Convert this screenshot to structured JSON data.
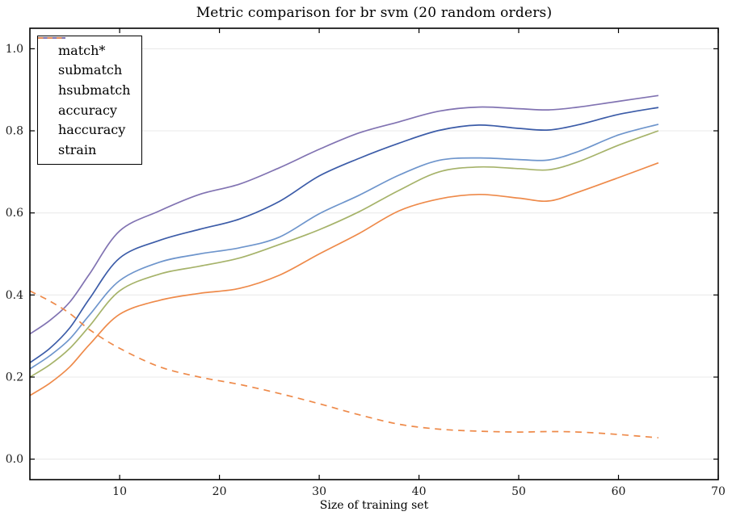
{
  "chart_data": {
    "type": "line",
    "title": "Metric comparison for br svm (20 random orders)",
    "xlabel": "Size of training set",
    "ylabel": "",
    "xlim": [
      1,
      70
    ],
    "ylim": [
      -0.05,
      1.05
    ],
    "x_ticks": [
      10,
      20,
      30,
      40,
      50,
      60,
      70
    ],
    "x_tick_labels": [
      "10",
      "20",
      "30",
      "40",
      "50",
      "60",
      "70"
    ],
    "y_ticks": [
      0.0,
      0.2,
      0.4,
      0.6,
      0.8,
      1.0
    ],
    "y_tick_labels": [
      "0.0",
      "0.2",
      "0.4",
      "0.6",
      "0.8",
      "1.0"
    ],
    "grid": "horizontal",
    "grid_color": "#e8e8e8",
    "legend_position": "upper-left",
    "x": [
      1,
      3,
      5,
      7,
      10,
      14,
      18,
      22,
      26,
      30,
      34,
      38,
      42,
      46,
      50,
      53,
      56,
      60,
      64
    ],
    "series": [
      {
        "name": "match*",
        "color": "#ee8a4a",
        "style": "solid",
        "values": [
          0.155,
          0.185,
          0.225,
          0.28,
          0.353,
          0.387,
          0.404,
          0.416,
          0.448,
          0.5,
          0.55,
          0.605,
          0.634,
          0.645,
          0.636,
          0.629,
          0.651,
          0.686,
          0.722
        ]
      },
      {
        "name": "submatch",
        "color": "#a6b36a",
        "style": "solid",
        "values": [
          0.2,
          0.23,
          0.27,
          0.325,
          0.41,
          0.451,
          0.47,
          0.49,
          0.523,
          0.559,
          0.603,
          0.655,
          0.7,
          0.712,
          0.708,
          0.705,
          0.725,
          0.765,
          0.8
        ]
      },
      {
        "name": "hsubmatch",
        "color": "#6e95cc",
        "style": "solid",
        "values": [
          0.22,
          0.252,
          0.293,
          0.352,
          0.435,
          0.48,
          0.5,
          0.515,
          0.541,
          0.598,
          0.643,
          0.692,
          0.728,
          0.734,
          0.73,
          0.729,
          0.75,
          0.79,
          0.816
        ]
      },
      {
        "name": "accuracy",
        "color": "#3c5ca8",
        "style": "solid",
        "values": [
          0.235,
          0.27,
          0.32,
          0.392,
          0.49,
          0.533,
          0.56,
          0.585,
          0.628,
          0.69,
          0.733,
          0.77,
          0.801,
          0.814,
          0.806,
          0.802,
          0.815,
          0.84,
          0.857
        ]
      },
      {
        "name": "haccuracy",
        "color": "#8173b2",
        "style": "solid",
        "values": [
          0.305,
          0.338,
          0.383,
          0.452,
          0.556,
          0.605,
          0.645,
          0.67,
          0.71,
          0.755,
          0.795,
          0.822,
          0.848,
          0.858,
          0.854,
          0.851,
          0.858,
          0.872,
          0.886
        ]
      },
      {
        "name": "strain",
        "color": "#ee8a4a",
        "style": "dashed",
        "values": [
          0.41,
          0.385,
          0.355,
          0.315,
          0.27,
          0.225,
          0.2,
          0.182,
          0.16,
          0.135,
          0.108,
          0.085,
          0.073,
          0.068,
          0.066,
          0.067,
          0.066,
          0.06,
          0.052
        ]
      }
    ]
  }
}
